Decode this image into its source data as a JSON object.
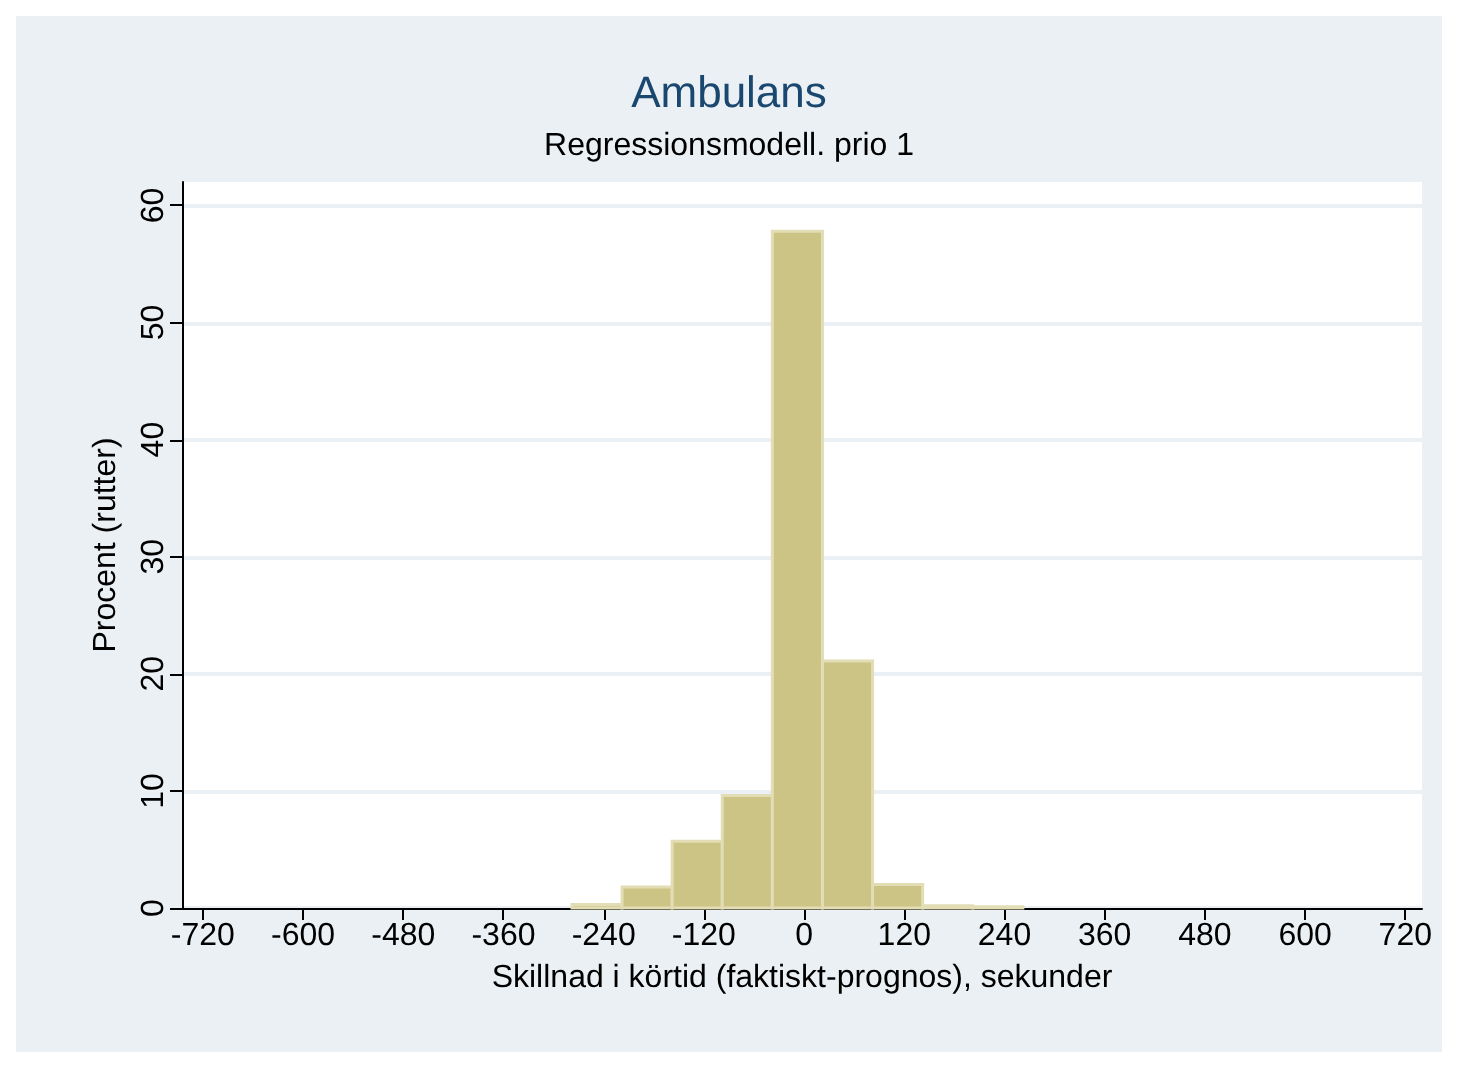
{
  "chart_data": {
    "type": "histogram",
    "title": "Ambulans",
    "subtitle": "Regressionsmodell. prio 1",
    "xlabel": "Skillnad i körtid (faktiskt-prognos), sekunder",
    "ylabel": "Procent (rutter)",
    "bins": [
      -278,
      -218,
      -158,
      -98,
      -38,
      22,
      82,
      142,
      202,
      262
    ],
    "values": [
      0.3,
      1.8,
      5.7,
      9.6,
      57.8,
      21.1,
      2.0,
      0.2,
      0.1
    ],
    "color": "#cbc484",
    "xlim": [
      -745,
      740
    ],
    "xticks": [
      -720,
      -600,
      -480,
      -360,
      -240,
      -120,
      0,
      120,
      240,
      360,
      480,
      600,
      720
    ],
    "ylim": [
      0,
      62
    ],
    "yticks": [
      0,
      10,
      20,
      30,
      40,
      50,
      60
    ],
    "grid": "y"
  }
}
